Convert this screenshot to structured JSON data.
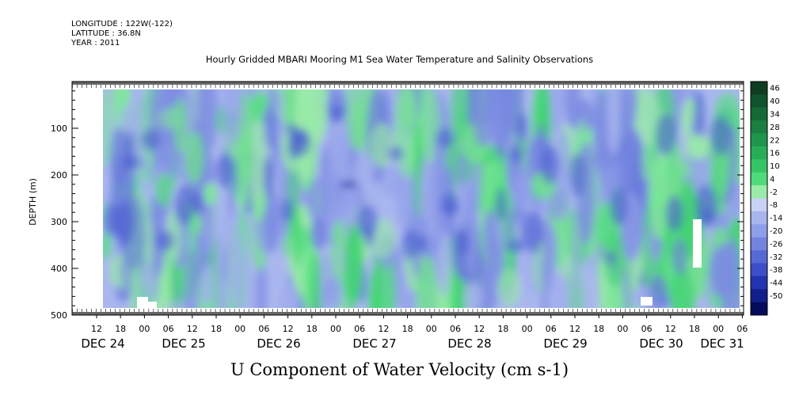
{
  "header": {
    "longitude": "LONGITUDE : 122W(-122)",
    "latitude": "LATITUDE : 36.8N",
    "year": "YEAR : 2011"
  },
  "chart_data": {
    "type": "heatmap",
    "title": "Hourly Gridded MBARI Mooring M1 Sea Water Temperature and Salinity Observations",
    "xlabel": "U Component of Water Velocity (cm s-1)",
    "ylabel": "DEPTH (m)",
    "yticks": [
      "100",
      "200",
      "300",
      "400",
      "500"
    ],
    "ylim": [
      500,
      0
    ],
    "hour_ticks": [
      "12",
      "18",
      "00",
      "06",
      "12",
      "18",
      "00",
      "06",
      "12",
      "18",
      "00",
      "06",
      "12",
      "18",
      "00",
      "06",
      "12",
      "18",
      "00",
      "06",
      "12",
      "18",
      "00",
      "06",
      "12",
      "18",
      "00",
      "06"
    ],
    "date_labels": [
      "DEC 24",
      "DEC 25",
      "DEC 26",
      "DEC 27",
      "DEC 28",
      "DEC 29",
      "DEC 30",
      "DEC 31"
    ],
    "colorbar_labels": [
      "46",
      "40",
      "34",
      "28",
      "22",
      "16",
      "10",
      "4",
      "-2",
      "-8",
      "-14",
      "-20",
      "-26",
      "-32",
      "-38",
      "-44",
      "-50"
    ],
    "colorbar_colors": [
      "#0e3d22",
      "#10532c",
      "#156936",
      "#1a7f40",
      "#1f964c",
      "#27ad58",
      "#35c466",
      "#4fdb7c",
      "#9aeba8",
      "#c8d2f5",
      "#a9b5ee",
      "#8f9ee8",
      "#7383e0",
      "#566ad6",
      "#3b4fc8",
      "#2234b0",
      "#101f8a",
      "#060c5c"
    ]
  }
}
